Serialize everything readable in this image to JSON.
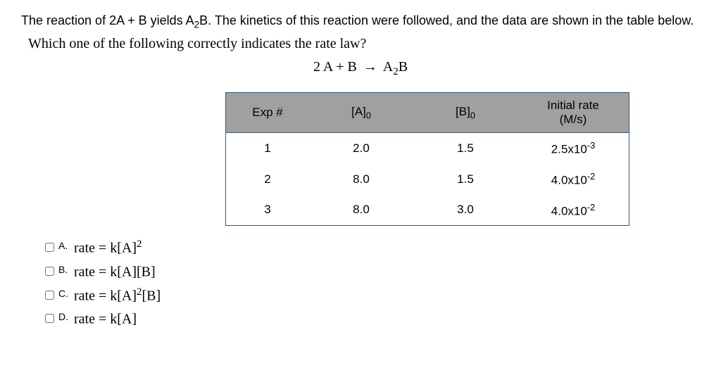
{
  "intro_bold": "The reaction of 2A + B yields A",
  "intro_bold_sub": "2",
  "intro_bold_tail": "B. The kinetics of this reaction were followed, and the data are shown in the table below.",
  "intro_question": "Which one of the following correctly indicates the rate law?",
  "equation": {
    "lhs": "2 A + B",
    "arrow": "→",
    "rhs_pre": "A",
    "rhs_sub": "2",
    "rhs_post": "B"
  },
  "table": {
    "headers": {
      "exp": "Exp #",
      "a_pre": "[A]",
      "a_sub": "0",
      "b_pre": "[B]",
      "b_sub": "0",
      "rate_line1": "Initial rate",
      "rate_line2": "(M/s)"
    },
    "rows": [
      {
        "exp": "1",
        "a": "2.0",
        "b": "1.5",
        "rate_pre": "2.5x10",
        "rate_sup": "-3"
      },
      {
        "exp": "2",
        "a": "8.0",
        "b": "1.5",
        "rate_pre": "4.0x10",
        "rate_sup": "-2"
      },
      {
        "exp": "3",
        "a": "8.0",
        "b": "3.0",
        "rate_pre": "4.0x10",
        "rate_sup": "-2"
      }
    ],
    "header_bg": "#a0a0a0",
    "border_color": "#2a5b8a"
  },
  "choices": [
    {
      "letter": "A.",
      "pre": "rate = k[A]",
      "sup": "2",
      "post": ""
    },
    {
      "letter": "B.",
      "pre": "rate = k[A][B]",
      "sup": "",
      "post": ""
    },
    {
      "letter": "C.",
      "pre": "rate = k[A]",
      "sup": "2",
      "post": "[B]"
    },
    {
      "letter": "D.",
      "pre": "rate = k[A]",
      "sup": "",
      "post": ""
    }
  ]
}
